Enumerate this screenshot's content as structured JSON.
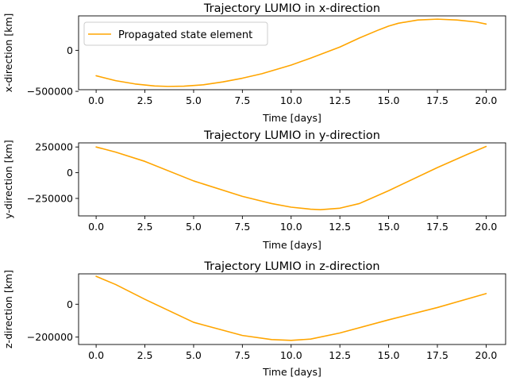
{
  "chart_data": [
    {
      "type": "line",
      "title": "Trajectory LUMIO in x-direction",
      "xlabel": "Time [days]",
      "ylabel": "x-direction [km]",
      "xlim": [
        -0.9,
        21.0
      ],
      "ylim": [
        -480000,
        420000
      ],
      "xticks": [
        "0.0",
        "2.5",
        "5.0",
        "7.5",
        "10.0",
        "12.5",
        "15.0",
        "17.5",
        "20.0"
      ],
      "yticks": [
        {
          "value": 0,
          "label": "0"
        },
        {
          "value": -500000,
          "label": "−500000"
        }
      ],
      "legend": {
        "position": "upper-left",
        "entries": [
          "Propagated state element"
        ]
      },
      "series": [
        {
          "name": "Propagated state element",
          "color": "#ffa500",
          "x": [
            0,
            1,
            2,
            3,
            3.7,
            4.5,
            5.5,
            6.5,
            7.5,
            8.5,
            10,
            11,
            12.5,
            13.5,
            14.5,
            15,
            15.5,
            16.5,
            17.5,
            18.5,
            19.5,
            20
          ],
          "y": [
            -310000,
            -370000,
            -410000,
            -435000,
            -440000,
            -437000,
            -420000,
            -385000,
            -340000,
            -285000,
            -180000,
            -95000,
            40000,
            150000,
            250000,
            295000,
            330000,
            370000,
            380000,
            370000,
            345000,
            320000
          ]
        }
      ]
    },
    {
      "type": "line",
      "title": "Trajectory LUMIO in y-direction",
      "xlabel": "Time [days]",
      "ylabel": "y-direction [km]",
      "xlim": [
        -0.9,
        21.0
      ],
      "ylim": [
        -420000,
        290000
      ],
      "xticks": [
        "0.0",
        "2.5",
        "5.0",
        "7.5",
        "10.0",
        "12.5",
        "15.0",
        "17.5",
        "20.0"
      ],
      "yticks": [
        {
          "value": 250000,
          "label": "250000"
        },
        {
          "value": 0,
          "label": "0"
        },
        {
          "value": -250000,
          "label": "−250000"
        }
      ],
      "series": [
        {
          "name": "Propagated state element",
          "color": "#ffa500",
          "x": [
            0,
            1,
            2.5,
            5,
            7.5,
            9,
            10,
            11,
            11.5,
            12.5,
            13.5,
            15,
            17.5,
            19,
            20
          ],
          "y": [
            250000,
            200000,
            110000,
            -80000,
            -230000,
            -300000,
            -335000,
            -355000,
            -360000,
            -345000,
            -300000,
            -175000,
            50000,
            175000,
            255000
          ]
        }
      ]
    },
    {
      "type": "line",
      "title": "Trajectory LUMIO in z-direction",
      "xlabel": "Time [days]",
      "ylabel": "z-direction [km]",
      "xlim": [
        -0.9,
        21.0
      ],
      "ylim": [
        -245000,
        185000
      ],
      "xticks": [
        "0.0",
        "2.5",
        "5.0",
        "7.5",
        "10.0",
        "12.5",
        "15.0",
        "17.5",
        "20.0"
      ],
      "yticks": [
        {
          "value": 0,
          "label": "0"
        },
        {
          "value": -200000,
          "label": "−200000"
        }
      ],
      "series": [
        {
          "name": "Propagated state element",
          "color": "#ffa500",
          "x": [
            0,
            1,
            2.5,
            5,
            7.5,
            9,
            10,
            11,
            12.5,
            15,
            17.5,
            20
          ],
          "y": [
            170000,
            120000,
            30000,
            -110000,
            -190000,
            -215000,
            -220000,
            -212000,
            -175000,
            -95000,
            -20000,
            65000
          ]
        }
      ]
    }
  ]
}
